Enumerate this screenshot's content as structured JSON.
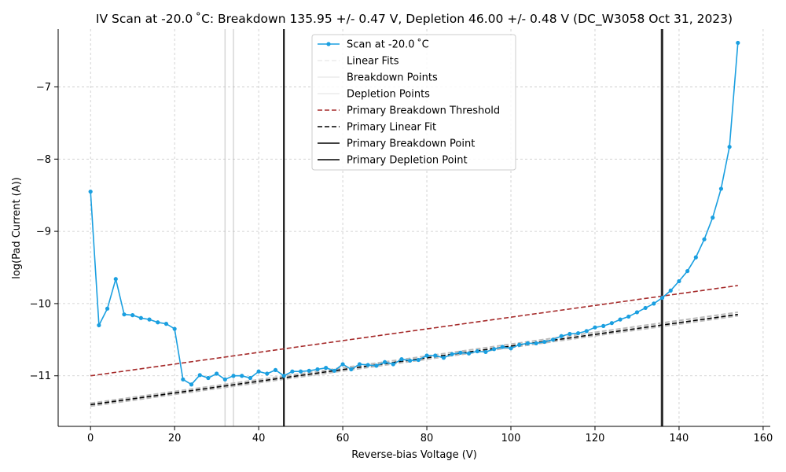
{
  "chart_data": {
    "type": "line",
    "title": "IV Scan at -20.0$^\\circ$C: Breakdown 135.95 +/- 0.47 V, Depletion 46.00 +/- 0.48 V (DC_W3058 Oct 31, 2023)",
    "title_display": "IV Scan at -20.0 ˚C: Breakdown 135.95 +/- 0.47 V, Depletion 46.00 +/- 0.48 V (DC_W3058 Oct 31, 2023)",
    "xlabel": "Reverse-bias Voltage (V)",
    "ylabel": "log(Pad Current (A))",
    "xlim": [
      -7.7,
      161.7
    ],
    "ylim": [
      -11.7,
      -6.2
    ],
    "xticks": [
      0,
      20,
      40,
      60,
      80,
      100,
      120,
      140,
      160
    ],
    "yticks": [
      -11,
      -10,
      -9,
      -8,
      -7
    ],
    "xtick_labels": [
      "0",
      "20",
      "40",
      "60",
      "80",
      "100",
      "120",
      "140",
      "160"
    ],
    "ytick_labels": [
      "−11",
      "−10",
      "−9",
      "−8",
      "−7"
    ],
    "grid": true,
    "legend_position": "top-center",
    "colors": {
      "scan": "#1a9fe0",
      "threshold": "#a52a2a",
      "fit": "#000000",
      "gray": "#bbbbbb"
    },
    "series": [
      {
        "name": "Scan at -20.0 ˚C",
        "x": [
          0,
          2,
          4,
          6,
          8,
          10,
          12,
          14,
          16,
          18,
          20,
          22,
          24,
          26,
          28,
          30,
          32,
          34,
          36,
          38,
          40,
          42,
          44,
          46,
          48,
          50,
          52,
          54,
          56,
          58,
          60,
          62,
          64,
          66,
          68,
          70,
          72,
          74,
          76,
          78,
          80,
          82,
          84,
          86,
          88,
          90,
          92,
          94,
          96,
          98,
          100,
          102,
          104,
          106,
          108,
          110,
          112,
          114,
          116,
          118,
          120,
          122,
          124,
          126,
          128,
          130,
          132,
          134,
          136,
          138,
          140,
          142,
          144,
          146,
          148,
          150,
          152,
          154
        ],
        "y": [
          -8.45,
          -10.3,
          -10.07,
          -9.66,
          -10.15,
          -10.16,
          -10.2,
          -10.22,
          -10.26,
          -10.28,
          -10.35,
          -11.05,
          -11.12,
          -10.99,
          -11.03,
          -10.97,
          -11.05,
          -11.0,
          -11.0,
          -11.03,
          -10.94,
          -10.97,
          -10.92,
          -11.0,
          -10.94,
          -10.94,
          -10.93,
          -10.91,
          -10.89,
          -10.93,
          -10.84,
          -10.91,
          -10.84,
          -10.85,
          -10.86,
          -10.81,
          -10.84,
          -10.77,
          -10.79,
          -10.78,
          -10.72,
          -10.72,
          -10.75,
          -10.7,
          -10.68,
          -10.69,
          -10.66,
          -10.67,
          -10.63,
          -10.6,
          -10.62,
          -10.57,
          -10.55,
          -10.55,
          -10.53,
          -10.5,
          -10.45,
          -10.42,
          -10.41,
          -10.38,
          -10.33,
          -10.31,
          -10.27,
          -10.22,
          -10.18,
          -10.12,
          -10.06,
          -10.0,
          -9.92,
          -9.82,
          -9.69,
          -9.55,
          -9.36,
          -9.11,
          -8.81,
          -8.41,
          -7.83,
          -6.39
        ]
      }
    ],
    "legend_entries": [
      "Scan at -20.0 ˚C",
      "Linear Fits",
      "Breakdown Points",
      "Depletion Points",
      "Primary Breakdown Threshold",
      "Primary Linear Fit",
      "Primary Breakdown Point",
      "Primary Depletion Point"
    ],
    "threshold_line": {
      "x": [
        0,
        154
      ],
      "y": [
        -11.0,
        -9.75
      ]
    },
    "fit_line": {
      "x": [
        0,
        154
      ],
      "y": [
        -11.4,
        -10.15
      ]
    },
    "fit_band_lines": [
      {
        "x": [
          0,
          154
        ],
        "y": [
          -11.38,
          -10.12
        ]
      },
      {
        "x": [
          0,
          154
        ],
        "y": [
          -11.42,
          -10.17
        ]
      }
    ],
    "primary_breakdown_x": 135.95,
    "breakdown_lines_x": [
      135.75,
      136.15
    ],
    "primary_depletion_x": 46.0,
    "depletion_points_x": [
      32,
      34
    ]
  }
}
